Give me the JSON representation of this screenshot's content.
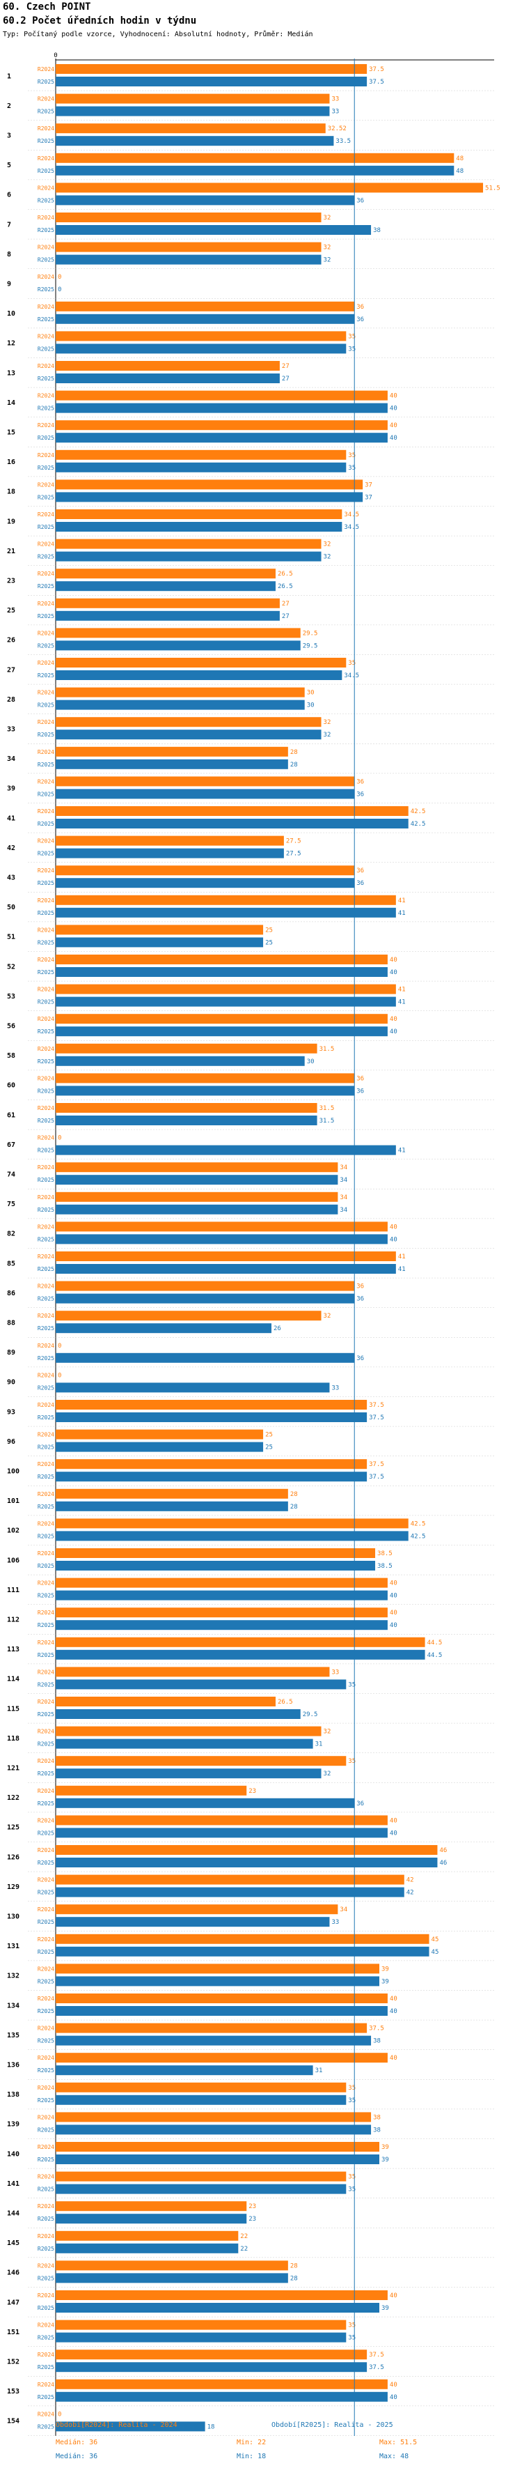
{
  "header": {
    "title": "60. Czech POINT",
    "chart_title": "60.2 Počet úředních hodin v týdnu",
    "meta": "Typ: Počítaný podle vzorce, Vyhodnocení: Absolutní hodnoty, Průměr: Medián"
  },
  "colors": {
    "r2024": "#ff7f0e",
    "r2025": "#1f77b4",
    "reference": "#1f77b4"
  },
  "chart_data": {
    "type": "bar",
    "orientation": "horizontal",
    "title": "60.2 Počet úředních hodin v týdnu",
    "axis_zero_label": "0",
    "xlim": [
      0,
      52
    ],
    "reference_line": 36,
    "series_labels": [
      "R2024",
      "R2025"
    ],
    "categories": [
      "1",
      "2",
      "3",
      "5",
      "6",
      "7",
      "8",
      "9",
      "10",
      "12",
      "13",
      "14",
      "15",
      "16",
      "18",
      "19",
      "21",
      "23",
      "25",
      "26",
      "27",
      "28",
      "33",
      "34",
      "39",
      "41",
      "42",
      "43",
      "50",
      "51",
      "52",
      "53",
      "56",
      "58",
      "60",
      "61",
      "67",
      "74",
      "75",
      "82",
      "85",
      "86",
      "88",
      "89",
      "90",
      "93",
      "96",
      "100",
      "101",
      "102",
      "106",
      "111",
      "112",
      "113",
      "114",
      "115",
      "118",
      "121",
      "122",
      "125",
      "126",
      "129",
      "130",
      "131",
      "132",
      "134",
      "135",
      "136",
      "138",
      "139",
      "140",
      "141",
      "144",
      "145",
      "146",
      "147",
      "151",
      "152",
      "153",
      "154"
    ],
    "series": [
      {
        "name": "R2024",
        "values": [
          37.5,
          33,
          32.52,
          48,
          51.5,
          32,
          32,
          0,
          36,
          35,
          27,
          40,
          40,
          35,
          37,
          34.5,
          32,
          26.5,
          27,
          29.5,
          35,
          30,
          32,
          28,
          36,
          42.5,
          27.5,
          36,
          41,
          25,
          40,
          41,
          40,
          31.5,
          36,
          31.5,
          0,
          34,
          34,
          40,
          41,
          36,
          32,
          0,
          0,
          37.5,
          25,
          37.5,
          28,
          42.5,
          38.5,
          40,
          40,
          44.5,
          33,
          26.5,
          32,
          35,
          23,
          40,
          46,
          42,
          34,
          45,
          39,
          40,
          37.5,
          40,
          35,
          38,
          39,
          35,
          23,
          22,
          28,
          40,
          35,
          37.5,
          40,
          0
        ]
      },
      {
        "name": "R2025",
        "values": [
          37.5,
          33,
          33.5,
          48,
          36,
          38,
          32,
          0,
          36,
          35,
          27,
          40,
          40,
          35,
          37,
          34.5,
          32,
          26.5,
          27,
          29.5,
          34.5,
          30,
          32,
          28,
          36,
          42.5,
          27.5,
          36,
          41,
          25,
          40,
          41,
          40,
          30,
          36,
          31.5,
          41,
          34,
          34,
          40,
          41,
          36,
          26,
          36,
          33,
          37.5,
          25,
          37.5,
          28,
          42.5,
          38.5,
          40,
          40,
          44.5,
          35,
          29.5,
          31,
          32,
          36,
          40,
          46,
          42,
          33,
          45,
          39,
          40,
          38,
          31,
          35,
          38,
          39,
          35,
          23,
          22,
          28,
          39,
          35,
          37.5,
          40,
          18
        ]
      }
    ],
    "value_labels_2024": [
      "37.5",
      "33",
      "32.52",
      "48",
      "51.5",
      "32",
      "32",
      "0",
      "36",
      "35",
      "27",
      "40",
      "40",
      "35",
      "37",
      "34.5",
      "32",
      "26.5",
      "27",
      "29.5",
      "35",
      "30",
      "32",
      "28",
      "36",
      "42.5",
      "27.5",
      "36",
      "41",
      "25",
      "40",
      "41",
      "40",
      "31.5",
      "36",
      "31.5",
      "0",
      "34",
      "34",
      "40",
      "41",
      "36",
      "32",
      "0",
      "0",
      "37.5",
      "25",
      "37.5",
      "28",
      "42.5",
      "38.5",
      "40",
      "40",
      "44.5",
      "33",
      "26.5",
      "32",
      "35",
      "23",
      "40",
      "46",
      "42",
      "34",
      "45",
      "39",
      "40",
      "37.5",
      "40",
      "35",
      "38",
      "39",
      "35",
      "23",
      "22",
      "28",
      "40",
      "35",
      "37.5",
      "40",
      "0"
    ],
    "value_labels_2025": [
      "37.5",
      "33",
      "33.5",
      "48",
      "36",
      "38",
      "32",
      "0",
      "36",
      "35",
      "27",
      "40",
      "40",
      "35",
      "37",
      "34.5",
      "32",
      "26.5",
      "27",
      "29.5",
      "34.5",
      "30",
      "32",
      "28",
      "36",
      "42.5",
      "27.5",
      "36",
      "41",
      "25",
      "40",
      "41",
      "40",
      "30",
      "36",
      "31.5",
      "41",
      "34",
      "34",
      "40",
      "41",
      "36",
      "26",
      "36",
      "33",
      "37.5",
      "25",
      "37.5",
      "28",
      "42.5",
      "38.5",
      "40",
      "40",
      "44.5",
      "35",
      "29.5",
      "31",
      "32",
      "36",
      "40",
      "46",
      "42",
      "33",
      "45",
      "39",
      "40",
      "38",
      "31",
      "35",
      "38",
      "39",
      "35",
      "23",
      "22",
      "28",
      "39",
      "35",
      "37.5",
      "40",
      "18"
    ]
  },
  "footer": {
    "legend_2024": "Období[R2024]: Realita - 2024",
    "legend_2025": "Období[R2025]: Realita - 2025",
    "median_2024": "Medián: 36",
    "min_2024": "Min: 22",
    "max_2024": "Max: 51.5",
    "median_2025": "Medián: 36",
    "min_2025": "Min: 18",
    "max_2025": "Max: 48"
  }
}
